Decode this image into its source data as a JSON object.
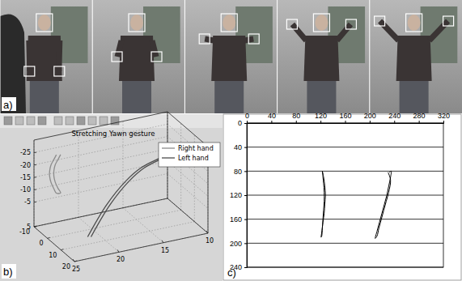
{
  "photo_strip": {
    "label": "a)"
  },
  "chart_data": [
    {
      "type": "line3d",
      "title": "Stretching Yawn gesture",
      "annotations": [
        "b)"
      ],
      "xlim": [
        -10,
        20
      ],
      "xticks": [
        -10,
        0,
        10,
        20
      ],
      "ylim": [
        10,
        25
      ],
      "yticks": [
        10,
        15,
        20,
        25
      ],
      "zlim": [
        -30,
        5
      ],
      "zticks": [
        -25,
        -20,
        -15,
        -10,
        -5,
        5
      ],
      "grid": true,
      "legend": "northeast",
      "series": [
        {
          "name": "Right hand",
          "color": "#8c8c8c",
          "x": [
            0,
            -2,
            -4,
            -5,
            -5,
            -4,
            -2,
            0,
            0.5,
            -1.5,
            -3.5,
            -4.5,
            -4.5,
            -3.5,
            -1.5,
            0.5
          ],
          "y": [
            24,
            24,
            24,
            24,
            24,
            24,
            24,
            24,
            23.6,
            23.6,
            23.6,
            23.6,
            23.6,
            23.6,
            23.6,
            23.6
          ],
          "z": [
            -28,
            -25,
            -22,
            -19,
            -17,
            -15,
            -13.5,
            -12.5,
            -12.5,
            -13.5,
            -15,
            -17,
            -19,
            -22,
            -25,
            -28
          ]
        },
        {
          "name": "Left hand",
          "color": "#4d4d4d",
          "x": [
            10,
            11,
            12,
            13,
            14,
            15,
            15.5,
            14.5,
            13.5,
            12.5,
            11.5,
            10.5
          ],
          "y": [
            22,
            20,
            18,
            16.5,
            15,
            14,
            13.7,
            14.7,
            16.2,
            17.7,
            19.7,
            21.7
          ],
          "z": [
            2,
            -10,
            -18.5,
            -23,
            -25.5,
            -26.7,
            -26.7,
            -25.5,
            -23,
            -18.5,
            -10,
            2
          ]
        }
      ]
    },
    {
      "type": "line",
      "annotations": [
        "c)"
      ],
      "xlim": [
        0,
        320
      ],
      "xticks": [
        0,
        40,
        80,
        120,
        160,
        200,
        240,
        280,
        320
      ],
      "ylim": [
        0,
        240
      ],
      "yticks": [
        0,
        40,
        80,
        120,
        160,
        200,
        240
      ],
      "grid": true,
      "series": [
        {
          "color": "#000000",
          "line_style": "solid",
          "x": [
            123,
            124,
            125,
            126,
            126,
            125,
            124,
            123,
            122,
            121,
            122,
            124,
            126,
            127,
            128,
            127,
            125,
            123
          ],
          "values": [
            80,
            90,
            100,
            115,
            130,
            145,
            160,
            175,
            188,
            190,
            182,
            165,
            150,
            135,
            120,
            105,
            90,
            80
          ]
        },
        {
          "color": "#000000",
          "line_style": "solid",
          "x": [
            232,
            235,
            234,
            231,
            228,
            224,
            220,
            216,
            212,
            209,
            212,
            215,
            219,
            223,
            227,
            231,
            234,
            230
          ],
          "values": [
            82,
            80,
            90,
            105,
            120,
            135,
            150,
            165,
            180,
            192,
            188,
            175,
            160,
            145,
            130,
            115,
            95,
            82
          ]
        }
      ]
    }
  ]
}
